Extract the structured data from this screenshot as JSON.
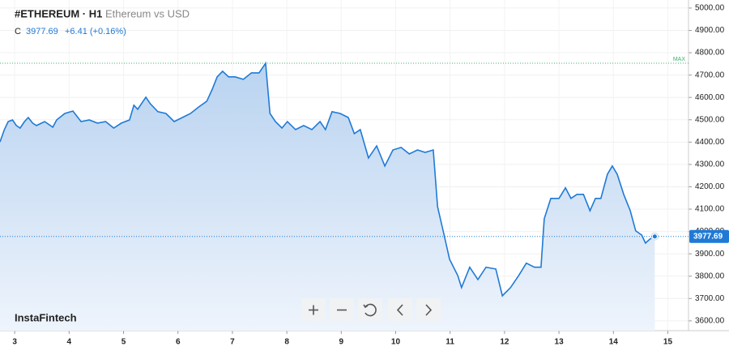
{
  "header": {
    "symbol": "#ETHEREUM · H1",
    "description": "Ethereum vs USD",
    "close_label": "C",
    "close": "3977.69",
    "change": "+6.41 (+0.16%)"
  },
  "logo": "InstaFintech",
  "chart_data": {
    "type": "area",
    "grid": true,
    "color": "#1f7ad6",
    "x": [
      2.73,
      2.81,
      2.88,
      2.96,
      3.03,
      3.1,
      3.18,
      3.25,
      3.33,
      3.4,
      3.55,
      3.7,
      3.77,
      3.92,
      4.07,
      4.22,
      4.37,
      4.52,
      4.67,
      4.82,
      4.96,
      5.11,
      5.19,
      5.26,
      5.41,
      5.49,
      5.63,
      5.78,
      5.93,
      6.08,
      6.23,
      6.38,
      6.53,
      6.63,
      6.72,
      6.82,
      6.93,
      7.05,
      7.2,
      7.35,
      7.49,
      7.61,
      7.69,
      7.79,
      7.91,
      8.01,
      8.16,
      8.31,
      8.46,
      8.61,
      8.71,
      8.83,
      8.98,
      9.13,
      9.24,
      9.35,
      9.5,
      9.65,
      9.8,
      9.95,
      10.1,
      10.25,
      10.4,
      10.54,
      10.69,
      10.77,
      10.89,
      10.99,
      11.14,
      11.21,
      11.36,
      11.51,
      11.66,
      11.84,
      11.96,
      12.11,
      12.26,
      12.4,
      12.55,
      12.67,
      12.73,
      12.85,
      13.0,
      13.12,
      13.22,
      13.33,
      13.45,
      13.57,
      13.67,
      13.77,
      13.89,
      13.98,
      14.07,
      14.19,
      14.31,
      14.41,
      14.52,
      14.59,
      14.67,
      14.76
    ],
    "values": [
      4401,
      4456,
      4492,
      4499,
      4474,
      4463,
      4492,
      4510,
      4485,
      4474,
      4492,
      4467,
      4499,
      4528,
      4539,
      4492,
      4499,
      4485,
      4492,
      4463,
      4485,
      4499,
      4565,
      4547,
      4601,
      4572,
      4536,
      4528,
      4492,
      4510,
      4528,
      4557,
      4583,
      4637,
      4692,
      4717,
      4692,
      4692,
      4681,
      4710,
      4710,
      4753,
      4528,
      4492,
      4463,
      4492,
      4456,
      4474,
      4456,
      4492,
      4456,
      4536,
      4528,
      4510,
      4438,
      4456,
      4329,
      4383,
      4293,
      4365,
      4376,
      4347,
      4365,
      4354,
      4365,
      4111,
      3984,
      3876,
      3803,
      3749,
      3840,
      3785,
      3840,
      3832,
      3712,
      3749,
      3803,
      3858,
      3840,
      3840,
      4057,
      4148,
      4148,
      4195,
      4148,
      4166,
      4166,
      4093,
      4148,
      4148,
      4256,
      4293,
      4256,
      4166,
      4093,
      4003,
      3984,
      3948,
      3966,
      3977.69
    ],
    "xlim": [
      2.73,
      15.38
    ],
    "xticks": [
      3,
      4,
      5,
      6,
      7,
      8,
      9,
      10,
      11,
      12,
      13,
      14,
      15
    ],
    "ylim": [
      3556,
      5036
    ],
    "yticks": [
      {
        "value": 3600,
        "label": "3600.00"
      },
      {
        "value": 3700,
        "label": "3700.00"
      },
      {
        "value": 3800,
        "label": "3800.00"
      },
      {
        "value": 3900,
        "label": "3900.00"
      },
      {
        "value": 4000,
        "label": "4000.00"
      },
      {
        "value": 4100,
        "label": "4100.00"
      },
      {
        "value": 4200,
        "label": "4200.00"
      },
      {
        "value": 4300,
        "label": "4300.00"
      },
      {
        "value": 4400,
        "label": "4400.00"
      },
      {
        "value": 4500,
        "label": "4500.00"
      },
      {
        "value": 4600,
        "label": "4600.00"
      },
      {
        "value": 4700,
        "label": "4700.00"
      },
      {
        "value": 4800,
        "label": "4800.00"
      },
      {
        "value": 4900,
        "label": "4900.00"
      },
      {
        "value": 5000,
        "label": "5000.00"
      }
    ],
    "max_line": {
      "value": 4753,
      "label": "MAX",
      "color": "#3bb36b"
    },
    "last_price": {
      "value": 3977.69,
      "label": "3977.69"
    }
  }
}
